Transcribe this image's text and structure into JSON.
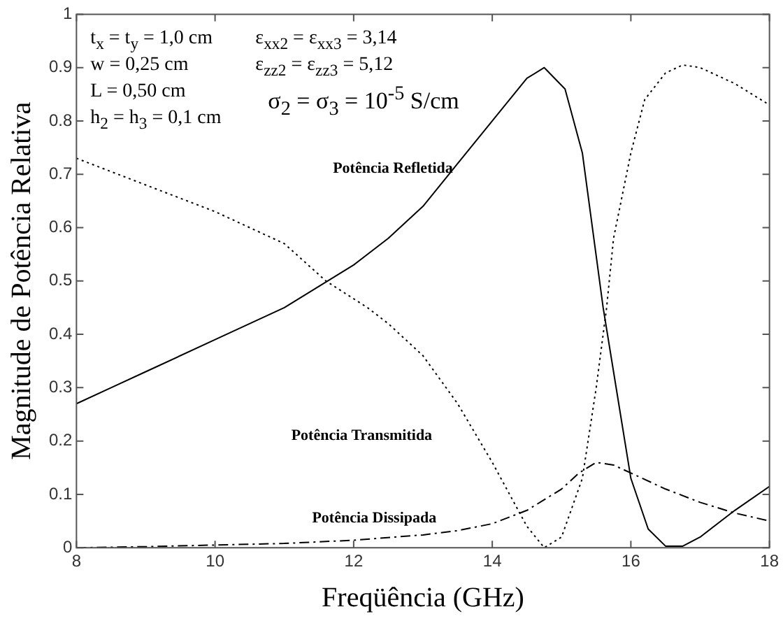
{
  "chart_data": {
    "type": "line",
    "xlabel": "Freqüência (GHz)",
    "ylabel": "Magnitude de Potência Relativa",
    "xlim": [
      8,
      18
    ],
    "xticks": [
      8,
      10,
      12,
      14,
      16,
      18
    ],
    "ylim": [
      0,
      1
    ],
    "yticks": [
      0,
      0.1,
      0.2,
      0.3,
      0.4,
      0.5,
      0.6,
      0.7,
      0.8,
      0.9,
      1
    ],
    "grid": false,
    "legend": false,
    "marker": "none",
    "annotations": [
      "t$_{x}$ = t$_{y}$ = 1,0 cm",
      "w = 0,25 cm",
      "L = 0,50 cm",
      "h$_{2}$ = h$_{3}$ = 0,1 cm",
      "ε$_{xx2}$ = ε$_{xx3}$ = 3,14",
      "ε$_{zz2}$ = ε$_{zz3}$ = 5,12",
      "σ$_{2}$ = σ$_{3}$ = 10$^{-5}$ S/cm"
    ],
    "series": [
      {
        "name": "Potência Refletida",
        "color": "#000000",
        "line_style": "solid",
        "x": [
          8,
          8.5,
          9,
          10,
          11,
          11.5,
          12,
          12.5,
          13,
          13.5,
          14,
          14.5,
          14.75,
          15.05,
          15.3,
          15.6,
          15.75,
          16,
          16.25,
          16.5,
          16.75,
          17,
          17.5,
          18
        ],
        "values": [
          0.27,
          0.3,
          0.33,
          0.39,
          0.45,
          0.49,
          0.53,
          0.58,
          0.64,
          0.72,
          0.8,
          0.88,
          0.9,
          0.86,
          0.74,
          0.45,
          0.33,
          0.13,
          0.035,
          0.003,
          0.003,
          0.02,
          0.07,
          0.115
        ]
      },
      {
        "name": "Potência Transmitida",
        "color": "#000000",
        "line_style": "dotted",
        "x": [
          8,
          9,
          10,
          11,
          11.6,
          12.2,
          12.5,
          13,
          13.5,
          14,
          14.5,
          14.75,
          15,
          15.3,
          15.5,
          15.65,
          15.75,
          16,
          16.2,
          16.5,
          16.75,
          17,
          17.5,
          18
        ],
        "values": [
          0.73,
          0.68,
          0.63,
          0.57,
          0.5,
          0.45,
          0.42,
          0.36,
          0.27,
          0.16,
          0.04,
          0,
          0.02,
          0.13,
          0.3,
          0.45,
          0.58,
          0.74,
          0.84,
          0.89,
          0.905,
          0.9,
          0.87,
          0.83
        ]
      },
      {
        "name": "Potência Dissipada",
        "color": "#000000",
        "line_style": "dashdot",
        "x": [
          8,
          9,
          10,
          11,
          12,
          13,
          13.5,
          14,
          14.5,
          15,
          15.25,
          15.5,
          15.75,
          16,
          16.5,
          17,
          17.5,
          18
        ],
        "values": [
          0,
          0.002,
          0.005,
          0.008,
          0.014,
          0.024,
          0.032,
          0.045,
          0.07,
          0.11,
          0.14,
          0.16,
          0.155,
          0.14,
          0.11,
          0.085,
          0.065,
          0.05
        ]
      }
    ]
  }
}
